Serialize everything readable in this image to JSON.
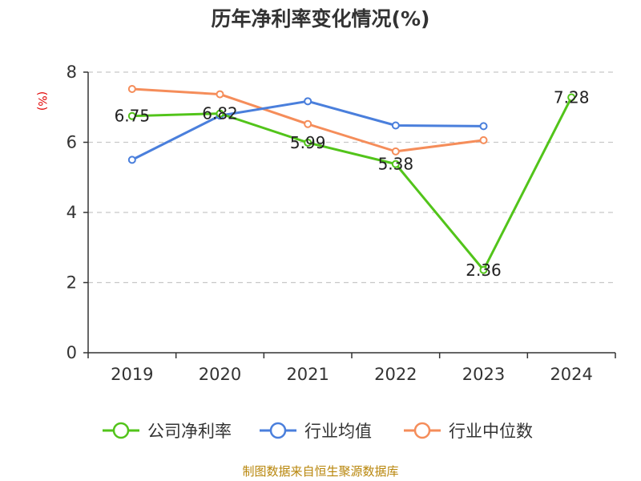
{
  "chart_data": {
    "type": "line",
    "title": "历年净利率变化情况(%)",
    "ylabel": "(%)",
    "xlabel": "",
    "categories": [
      "2019",
      "2020",
      "2021",
      "2022",
      "2023",
      "2024"
    ],
    "ylim": [
      0,
      8
    ],
    "yticks": [
      "0",
      "2",
      "4",
      "6",
      "8"
    ],
    "grid": true,
    "legend_position": "bottom",
    "series": [
      {
        "name": "公司净利率",
        "color": "#52c41a",
        "values": [
          6.75,
          6.82,
          5.99,
          5.38,
          2.36,
          7.28
        ],
        "labels": [
          "6.75",
          "6.82",
          "5.99",
          "5.38",
          "2.36",
          "7.28"
        ]
      },
      {
        "name": "行业均值",
        "color": "#4a7fdc",
        "values": [
          5.5,
          6.76,
          7.17,
          6.48,
          6.46,
          null
        ]
      },
      {
        "name": "行业中位数",
        "color": "#f58d5a",
        "values": [
          7.52,
          7.37,
          6.52,
          5.74,
          6.06,
          null
        ]
      }
    ],
    "source": "制图数据来自恒生聚源数据库"
  }
}
